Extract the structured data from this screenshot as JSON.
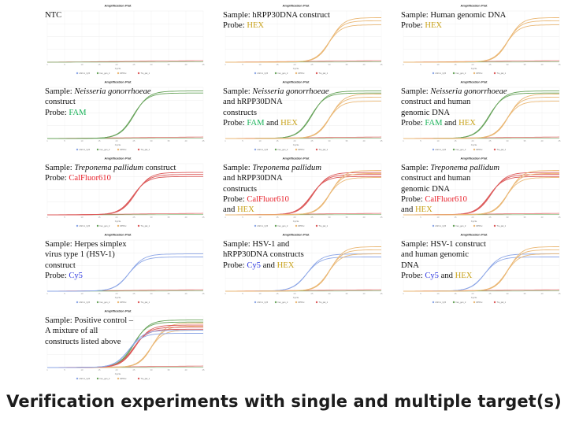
{
  "caption": "Verification experiments with single and multiple target(s)",
  "plot_title": "Amplification Plot",
  "x_axis_label": "Cycle",
  "legend": [
    "HSV-1_Cy5",
    "hex_gen_2",
    "RPPxx",
    "Tre_pal_1"
  ],
  "colors": {
    "FAM": "#1bb35a",
    "HEX": "#c8a21a",
    "CalFluor610": "#e8202a",
    "Cy5": "#2b35e0",
    "curve_green": "#67a35a",
    "curve_yellow": "#eab774",
    "curve_red": "#dc5a5a",
    "curve_blue": "#8ba5e6",
    "baseline_red": "#e26b6b",
    "baseline_green": "#7bb26d"
  },
  "panels": [
    {
      "id": "ntc",
      "lines": [
        {
          "text": "NTC"
        }
      ],
      "probe": null,
      "curves": []
    },
    {
      "id": "hrpp30",
      "lines": [
        {
          "text": "Sample: hRPP30DNA construct"
        }
      ],
      "probe": [
        {
          "text": "HEX",
          "dye": "HEX"
        }
      ],
      "curves": [
        "yellow"
      ]
    },
    {
      "id": "human",
      "lines": [
        {
          "text": "Sample: Human genomic DNA"
        }
      ],
      "probe": [
        {
          "text": "HEX",
          "dye": "HEX"
        }
      ],
      "curves": [
        "yellow"
      ]
    },
    {
      "id": "ng",
      "lines": [
        {
          "text": "Sample: ",
          "italic": "Neisseria gonorrhoeae"
        },
        {
          "text": "construct"
        }
      ],
      "probe": [
        {
          "text": "FAM",
          "dye": "FAM"
        }
      ],
      "curves": [
        "green"
      ]
    },
    {
      "id": "ng-hrpp30",
      "lines": [
        {
          "text": "Sample: ",
          "italic": "Neisseria gonorrhoeae"
        },
        {
          "text": "and hRPP30DNA"
        },
        {
          "text": "constructs"
        }
      ],
      "probe": [
        {
          "text": "FAM",
          "dye": "FAM"
        },
        {
          "text": " and "
        },
        {
          "text": "HEX",
          "dye": "HEX"
        }
      ],
      "curves": [
        "green",
        "yellow"
      ]
    },
    {
      "id": "ng-human",
      "lines": [
        {
          "text": "Sample: ",
          "italic": "Neisseria gonorrhoeae"
        },
        {
          "text": "construct and human"
        },
        {
          "text": "genomic DNA"
        }
      ],
      "probe": [
        {
          "text": "FAM",
          "dye": "FAM"
        },
        {
          "text": " and "
        },
        {
          "text": "HEX",
          "dye": "HEX"
        }
      ],
      "curves": [
        "green",
        "yellow"
      ]
    },
    {
      "id": "tp",
      "lines": [
        {
          "text": "Sample: ",
          "italic": "Treponema pallidum",
          "after": " construct"
        }
      ],
      "probe": [
        {
          "text": "CalFluor610",
          "dye": "CalFluor610"
        }
      ],
      "curves": [
        "red"
      ]
    },
    {
      "id": "tp-hrpp30",
      "lines": [
        {
          "text": "Sample: ",
          "italic": "Treponema pallidum"
        },
        {
          "text": "and hRPP30DNA"
        },
        {
          "text": "constructs"
        }
      ],
      "probe": [
        {
          "text": "CalFluor610",
          "dye": "CalFluor610"
        }
      ],
      "probe2": [
        {
          "text": "and "
        },
        {
          "text": "HEX",
          "dye": "HEX"
        }
      ],
      "curves": [
        "red",
        "yellow"
      ]
    },
    {
      "id": "tp-human",
      "lines": [
        {
          "text": "Sample: ",
          "italic": "Treponema pallidum"
        },
        {
          "text": "construct and human"
        },
        {
          "text": "genomic DNA"
        }
      ],
      "probe": [
        {
          "text": "CalFluor610",
          "dye": "CalFluor610"
        }
      ],
      "probe2": [
        {
          "text": "and "
        },
        {
          "text": "HEX",
          "dye": "HEX"
        }
      ],
      "curves": [
        "red",
        "yellow"
      ]
    },
    {
      "id": "hsv",
      "lines": [
        {
          "text": "Sample: Herpes simplex"
        },
        {
          "text": "virus type 1 (HSV-1)"
        },
        {
          "text": "construct"
        }
      ],
      "probe": [
        {
          "text": "Cy5",
          "dye": "Cy5"
        }
      ],
      "curves": [
        "blue"
      ]
    },
    {
      "id": "hsv-hrpp30",
      "lines": [
        {
          "text": "Sample: HSV-1 and"
        },
        {
          "text": "hRPP30DNA constructs"
        }
      ],
      "probe": [
        {
          "text": "Cy5",
          "dye": "Cy5"
        },
        {
          "text": " and "
        },
        {
          "text": "HEX",
          "dye": "HEX"
        }
      ],
      "curves": [
        "blue",
        "yellow"
      ]
    },
    {
      "id": "hsv-human",
      "lines": [
        {
          "text": "Sample: HSV-1 construct"
        },
        {
          "text": "and human genomic"
        },
        {
          "text": "DNA"
        }
      ],
      "probe": [
        {
          "text": "Cy5",
          "dye": "Cy5"
        },
        {
          "text": " and "
        },
        {
          "text": "HEX",
          "dye": "HEX"
        }
      ],
      "curves": [
        "blue",
        "yellow"
      ]
    },
    {
      "id": "positive",
      "lines": [
        {
          "text": "Sample: Positive control –"
        },
        {
          "text": "A mixture of all"
        },
        {
          "text": "constructs listed above"
        }
      ],
      "probe": null,
      "curves": [
        "green",
        "yellow",
        "red",
        "blue"
      ]
    }
  ],
  "chart_data": {
    "type": "line",
    "title": "Amplification Plot",
    "xlabel": "Cycle",
    "ylabel": "",
    "x": [
      1,
      5,
      10,
      15,
      20,
      25,
      30,
      35,
      40,
      45
    ],
    "series": [
      {
        "name": "HSV-1_Cy5",
        "values": [
          0,
          0,
          0,
          0,
          0.02,
          0.45,
          0.9,
          0.95,
          0.96,
          0.97
        ]
      },
      {
        "name": "hex_gen_2",
        "values": [
          0,
          0,
          0,
          0,
          0,
          0.02,
          0.55,
          0.88,
          0.95,
          0.97
        ]
      },
      {
        "name": "RPPxx",
        "values": [
          0,
          0,
          0,
          0,
          0.01,
          0.35,
          0.85,
          0.95,
          0.98,
          0.99
        ]
      },
      {
        "name": "Tre_pal_1",
        "values": [
          0,
          0,
          0,
          0,
          0.02,
          0.4,
          0.85,
          0.93,
          0.95,
          0.96
        ]
      }
    ]
  }
}
